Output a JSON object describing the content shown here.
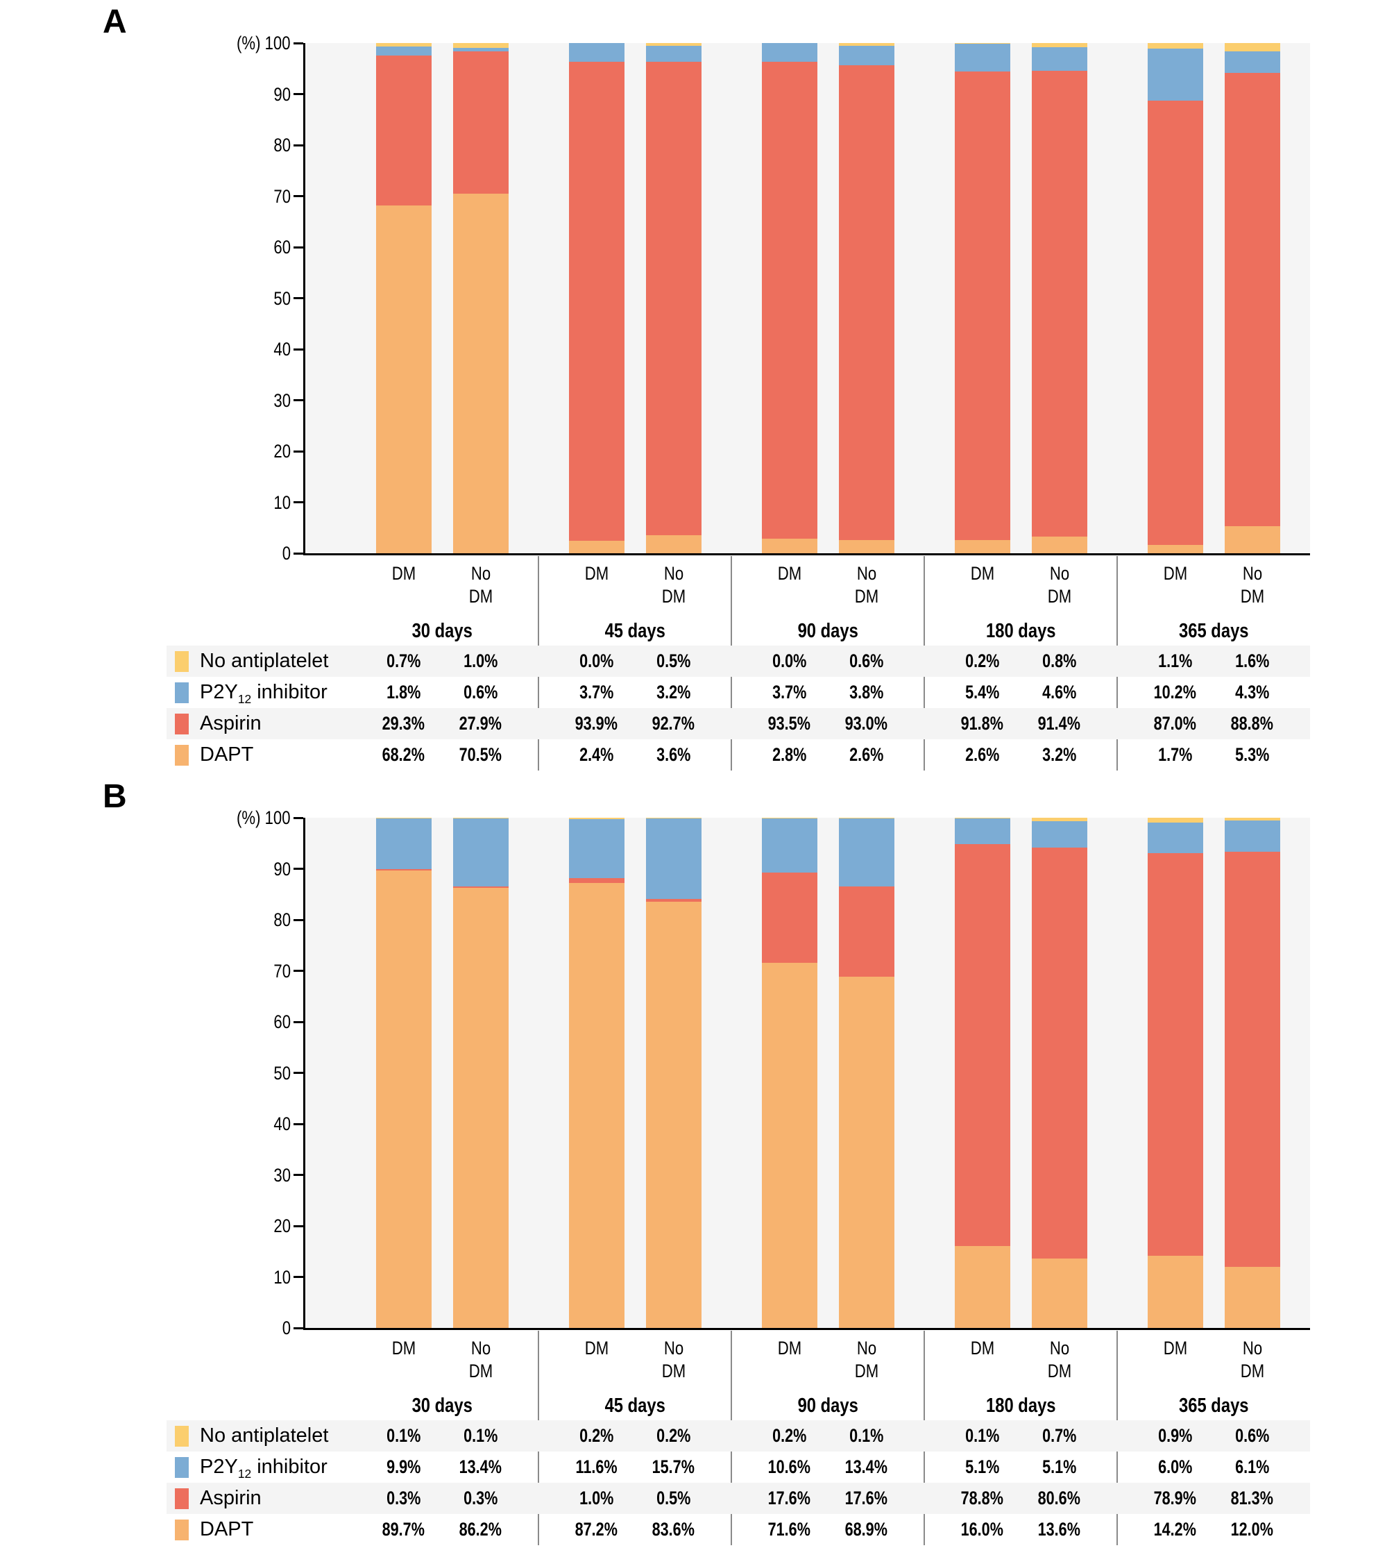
{
  "colors": {
    "plot_bg": "#F5F5F5",
    "row_stripe": "#F4F4F4",
    "divider": "#8A8A8A",
    "axis": "#000000"
  },
  "axis": {
    "unit_label": "(%)",
    "ticks": [
      100,
      90,
      80,
      70,
      60,
      50,
      40,
      30,
      20,
      10,
      0
    ]
  },
  "legend": [
    {
      "key": "no_antiplatelet",
      "label": "No antiplatelet",
      "color": "#FBCE6E"
    },
    {
      "key": "p2y12",
      "label": "P2Y12 inhibitor",
      "label_parts": {
        "base": "P2Y",
        "sub": "12",
        "rest": " inhibitor"
      },
      "color": "#7CACD4"
    },
    {
      "key": "aspirin",
      "label": "Aspirin",
      "color": "#ED6F5D"
    },
    {
      "key": "dapt",
      "label": "DAPT",
      "color": "#F7B36F"
    }
  ],
  "stack_order_bottom_to_top": [
    "dapt",
    "aspirin",
    "p2y12",
    "no_antiplatelet"
  ],
  "chart_data": [
    {
      "panel": "A",
      "type": "bar",
      "stacked": true,
      "ylim": [
        0,
        100
      ],
      "ylabel": "(%)",
      "categories": [
        "30 days",
        "45 days",
        "90 days",
        "180 days",
        "365 days"
      ],
      "subcategories": [
        "DM",
        "No DM"
      ],
      "series": [
        {
          "key": "no_antiplatelet",
          "name": "No antiplatelet",
          "values": {
            "DM": [
              0.7,
              0.0,
              0.0,
              0.2,
              1.1
            ],
            "No DM": [
              1.0,
              0.5,
              0.6,
              0.8,
              1.6
            ]
          }
        },
        {
          "key": "p2y12",
          "name": "P2Y12 inhibitor",
          "values": {
            "DM": [
              1.8,
              3.7,
              3.7,
              5.4,
              10.2
            ],
            "No DM": [
              0.6,
              3.2,
              3.8,
              4.6,
              4.3
            ]
          }
        },
        {
          "key": "aspirin",
          "name": "Aspirin",
          "values": {
            "DM": [
              29.3,
              93.9,
              93.5,
              91.8,
              87.0
            ],
            "No DM": [
              27.9,
              92.7,
              93.0,
              91.4,
              88.8
            ]
          }
        },
        {
          "key": "dapt",
          "name": "DAPT",
          "values": {
            "DM": [
              68.2,
              2.4,
              2.8,
              2.6,
              1.7
            ],
            "No DM": [
              70.5,
              3.6,
              2.6,
              3.2,
              5.3
            ]
          }
        }
      ]
    },
    {
      "panel": "B",
      "type": "bar",
      "stacked": true,
      "ylim": [
        0,
        100
      ],
      "ylabel": "(%)",
      "categories": [
        "30 days",
        "45 days",
        "90 days",
        "180 days",
        "365 days"
      ],
      "subcategories": [
        "DM",
        "No DM"
      ],
      "series": [
        {
          "key": "no_antiplatelet",
          "name": "No antiplatelet",
          "values": {
            "DM": [
              0.1,
              0.2,
              0.2,
              0.1,
              0.9
            ],
            "No DM": [
              0.1,
              0.2,
              0.1,
              0.7,
              0.6
            ]
          }
        },
        {
          "key": "p2y12",
          "name": "P2Y12 inhibitor",
          "values": {
            "DM": [
              9.9,
              11.6,
              10.6,
              5.1,
              6.0
            ],
            "No DM": [
              13.4,
              15.7,
              13.4,
              5.1,
              6.1
            ]
          }
        },
        {
          "key": "aspirin",
          "name": "Aspirin",
          "values": {
            "DM": [
              0.3,
              1.0,
              17.6,
              78.8,
              78.9
            ],
            "No DM": [
              0.3,
              0.5,
              17.6,
              80.6,
              81.3
            ]
          }
        },
        {
          "key": "dapt",
          "name": "DAPT",
          "values": {
            "DM": [
              89.7,
              87.2,
              71.6,
              16.0,
              14.2
            ],
            "No DM": [
              86.2,
              83.6,
              68.9,
              13.6,
              12.0
            ]
          }
        }
      ]
    }
  ]
}
